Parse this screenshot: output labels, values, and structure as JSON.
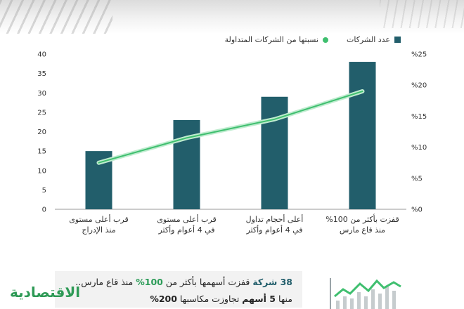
{
  "legend": {
    "bar_label": "عدد الشركات",
    "line_label": "نسبتها من الشركات المتداولة"
  },
  "chart_data": {
    "type": "bar",
    "categories": [
      [
        "قفزت بأكثر من 100%",
        "منذ قاع مارس"
      ],
      [
        "أعلى أحجام تداول",
        "في 4 أعوام وأكثر"
      ],
      [
        "قرب أعلى مستوى",
        "في 4 أعوام وأكثر"
      ],
      [
        "قرب أعلى مستوى",
        "منذ الإدراج"
      ]
    ],
    "series": [
      {
        "name": "عدد الشركات",
        "type": "bar",
        "axis": "left",
        "values": [
          38,
          29,
          23,
          15
        ]
      },
      {
        "name": "نسبتها من الشركات المتداولة",
        "type": "line",
        "axis": "right",
        "values": [
          19,
          14.5,
          11.5,
          7.5
        ]
      }
    ],
    "left_axis": {
      "ylim": [
        0,
        40
      ],
      "ticks": [
        "0",
        "5",
        "10",
        "15",
        "20",
        "25",
        "30",
        "35",
        "40"
      ]
    },
    "right_axis": {
      "ylim": [
        0,
        25
      ],
      "ticks": [
        "%0",
        "%5",
        "%10",
        "%15",
        "%20",
        "%25"
      ]
    },
    "colors": {
      "bar": "#225e6b",
      "line": "#3fbf6f",
      "axis": "#999999"
    },
    "grid": false
  },
  "summary": {
    "l1_n": "38 شركة",
    "l1_a": " قفزت أسهمها بأكثر من ",
    "l1_p": "100%",
    "l1_b": " منذ قاع مارس..",
    "l2_a": "منها ",
    "l2_n": "5 أسهم",
    "l2_b": " تجاوزت مكاسبها ",
    "l2_p": "200%"
  },
  "brand": {
    "logo_text": "الاقتصادية"
  }
}
